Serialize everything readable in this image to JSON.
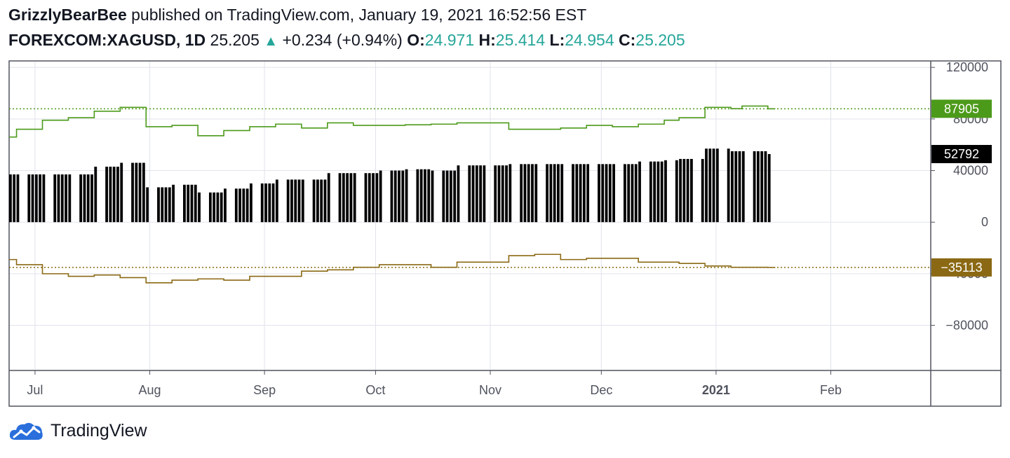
{
  "header": {
    "user": "GrizzlyBearBee",
    "published_text": "published on TradingView.com, January 19, 2021 16:52:56 EST",
    "symbol": "FOREXCOM:XAGUSD, 1D",
    "price": "25.205",
    "change": "+0.234 (+0.94%)",
    "o_label": "O:",
    "o_value": "24.971",
    "h_label": "H:",
    "h_value": "25.414",
    "l_label": "L:",
    "l_value": "24.954",
    "c_label": "C:",
    "c_value": "25.205"
  },
  "footer": {
    "brand": "TradingView",
    "logo_icon": "tradingview-cloud-icon"
  },
  "colors": {
    "green": "#4c9a1a",
    "brown": "#8b6914",
    "bars": "#000000",
    "grid": "#e0e3eb",
    "teal": "#26a69a"
  },
  "chart_data": {
    "type": "bar",
    "y_ticks": [
      "120000",
      "80000",
      "40000",
      "0",
      "−40000",
      "−80000"
    ],
    "y_tick_values": [
      120000,
      80000,
      40000,
      0,
      -40000,
      -80000
    ],
    "ylim": [
      -115000,
      125000
    ],
    "x_labels": [
      {
        "label": "Jul",
        "date": "2020-07-01",
        "bold": false
      },
      {
        "label": "Aug",
        "date": "2020-08-01",
        "bold": false
      },
      {
        "label": "Sep",
        "date": "2020-09-01",
        "bold": false
      },
      {
        "label": "Oct",
        "date": "2020-10-01",
        "bold": false
      },
      {
        "label": "Nov",
        "date": "2020-11-01",
        "bold": false
      },
      {
        "label": "Dec",
        "date": "2020-12-01",
        "bold": false
      },
      {
        "label": "2021",
        "date": "2021-01-01",
        "bold": true
      },
      {
        "label": "Feb",
        "date": "2021-02-01",
        "bold": false
      }
    ],
    "xlim": [
      "2020-06-24",
      "2021-02-28"
    ],
    "series": [
      {
        "role": "long",
        "color": "#4c9a1a",
        "last_label": "87905",
        "last_value": 87905,
        "steps": [
          [
            "2020-06-24",
            66000
          ],
          [
            "2020-06-26",
            72000
          ],
          [
            "2020-07-03",
            79000
          ],
          [
            "2020-07-10",
            81000
          ],
          [
            "2020-07-17",
            86000
          ],
          [
            "2020-07-24",
            89000
          ],
          [
            "2020-07-31",
            74000
          ],
          [
            "2020-08-07",
            75000
          ],
          [
            "2020-08-14",
            67000
          ],
          [
            "2020-08-21",
            71000
          ],
          [
            "2020-08-28",
            74000
          ],
          [
            "2020-09-04",
            76000
          ],
          [
            "2020-09-11",
            73000
          ],
          [
            "2020-09-18",
            77000
          ],
          [
            "2020-09-25",
            75000
          ],
          [
            "2020-10-02",
            75000
          ],
          [
            "2020-10-09",
            75500
          ],
          [
            "2020-10-16",
            76000
          ],
          [
            "2020-10-23",
            77000
          ],
          [
            "2020-10-30",
            77000
          ],
          [
            "2020-11-06",
            72000
          ],
          [
            "2020-11-13",
            72000
          ],
          [
            "2020-11-20",
            73000
          ],
          [
            "2020-11-27",
            75000
          ],
          [
            "2020-12-04",
            74000
          ],
          [
            "2020-12-11",
            76000
          ],
          [
            "2020-12-18",
            79000
          ],
          [
            "2020-12-22",
            81000
          ],
          [
            "2020-12-29",
            89000
          ],
          [
            "2021-01-05",
            88000
          ],
          [
            "2021-01-08",
            90000
          ],
          [
            "2021-01-15",
            87905
          ],
          [
            "2021-01-17",
            87905
          ]
        ]
      },
      {
        "role": "net",
        "color": "#000000",
        "last_label": "52792",
        "last_value": 52792,
        "bars": [
          [
            "2020-06-24",
            37000
          ],
          [
            "2020-07-03",
            37000
          ],
          [
            "2020-07-10",
            37000
          ],
          [
            "2020-07-17",
            43000
          ],
          [
            "2020-07-24",
            46000
          ],
          [
            "2020-07-31",
            27000
          ],
          [
            "2020-08-07",
            29000
          ],
          [
            "2020-08-14",
            23000
          ],
          [
            "2020-08-21",
            26000
          ],
          [
            "2020-08-28",
            30000
          ],
          [
            "2020-09-04",
            33000
          ],
          [
            "2020-09-11",
            33000
          ],
          [
            "2020-09-18",
            38000
          ],
          [
            "2020-09-25",
            38000
          ],
          [
            "2020-10-02",
            40000
          ],
          [
            "2020-10-09",
            41000
          ],
          [
            "2020-10-16",
            40000
          ],
          [
            "2020-10-23",
            44000
          ],
          [
            "2020-10-30",
            44000
          ],
          [
            "2020-11-06",
            45000
          ],
          [
            "2020-11-13",
            45000
          ],
          [
            "2020-11-20",
            45000
          ],
          [
            "2020-11-27",
            45000
          ],
          [
            "2020-12-04",
            45000
          ],
          [
            "2020-12-11",
            47000
          ],
          [
            "2020-12-18",
            48000
          ],
          [
            "2020-12-22",
            49000
          ],
          [
            "2020-12-29",
            57000
          ],
          [
            "2021-01-05",
            55000
          ],
          [
            "2021-01-08",
            55000
          ],
          [
            "2021-01-15",
            52792
          ]
        ],
        "end": "2021-01-17"
      },
      {
        "role": "short",
        "color": "#8b6914",
        "last_label": "−35113",
        "last_value": -35113,
        "steps": [
          [
            "2020-06-24",
            -29000
          ],
          [
            "2020-06-26",
            -33000
          ],
          [
            "2020-07-03",
            -40000
          ],
          [
            "2020-07-10",
            -42000
          ],
          [
            "2020-07-17",
            -41000
          ],
          [
            "2020-07-24",
            -43000
          ],
          [
            "2020-07-31",
            -47000
          ],
          [
            "2020-08-07",
            -45000
          ],
          [
            "2020-08-14",
            -44000
          ],
          [
            "2020-08-21",
            -45000
          ],
          [
            "2020-08-28",
            -42000
          ],
          [
            "2020-09-04",
            -42000
          ],
          [
            "2020-09-11",
            -38000
          ],
          [
            "2020-09-18",
            -37000
          ],
          [
            "2020-09-25",
            -35000
          ],
          [
            "2020-10-02",
            -33000
          ],
          [
            "2020-10-09",
            -33000
          ],
          [
            "2020-10-16",
            -35000
          ],
          [
            "2020-10-23",
            -31000
          ],
          [
            "2020-10-30",
            -31000
          ],
          [
            "2020-11-06",
            -26000
          ],
          [
            "2020-11-13",
            -25000
          ],
          [
            "2020-11-20",
            -29000
          ],
          [
            "2020-11-27",
            -28000
          ],
          [
            "2020-12-04",
            -28000
          ],
          [
            "2020-12-11",
            -31000
          ],
          [
            "2020-12-18",
            -31000
          ],
          [
            "2020-12-22",
            -32000
          ],
          [
            "2020-12-29",
            -34000
          ],
          [
            "2021-01-05",
            -35000
          ],
          [
            "2021-01-15",
            -35113
          ],
          [
            "2021-01-17",
            -35113
          ]
        ]
      }
    ]
  }
}
